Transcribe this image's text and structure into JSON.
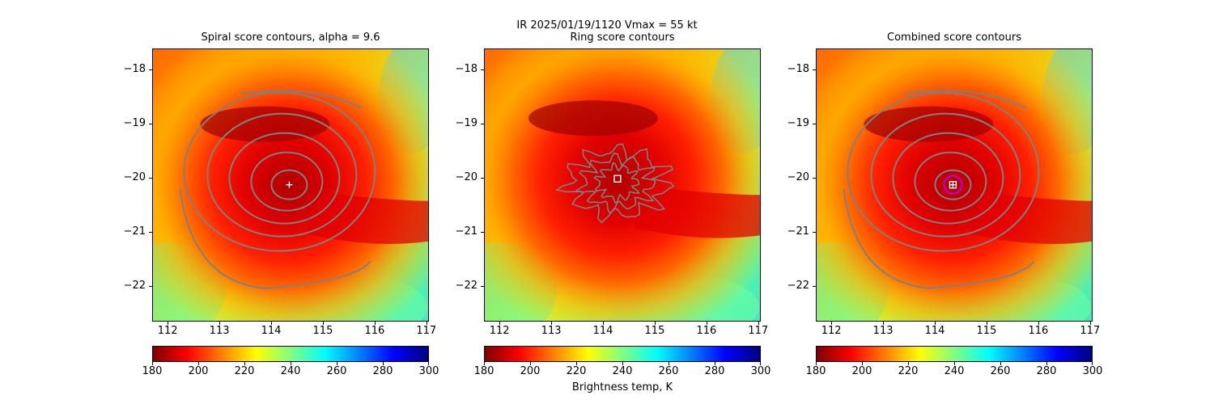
{
  "figure": {
    "suptitle_line1": "IR  2025/01/19/1120    Vmax = 55 kt",
    "colorbar_label": "Brightness temp, K",
    "colormap": [
      "#800000",
      "#ff0000",
      "#ff8000",
      "#ffff00",
      "#80ff80",
      "#00ffff",
      "#0080ff",
      "#0000ff",
      "#000080"
    ],
    "contour_color": "#808080"
  },
  "chart_data": [
    {
      "type": "heatmap",
      "title": "Spiral score contours, alpha =  9.6",
      "xlim": [
        111.7,
        117.05
      ],
      "ylim": [
        -22.65,
        -17.62
      ],
      "xticks": [
        "112",
        "113",
        "114",
        "115",
        "116",
        "117"
      ],
      "yticks": [
        "−18",
        "−19",
        "−20",
        "−21",
        "−22"
      ],
      "colorbar": {
        "min": 180,
        "max": 300,
        "ticks": [
          "180",
          "200",
          "220",
          "240",
          "260",
          "280",
          "300"
        ]
      },
      "center_marker": {
        "x": 114.35,
        "y": -20.13,
        "symbol": "plus",
        "color": "#ffffff"
      }
    },
    {
      "type": "heatmap",
      "title": "Ring score contours",
      "xlim": [
        111.7,
        117.05
      ],
      "ylim": [
        -22.65,
        -17.62
      ],
      "xticks": [
        "112",
        "113",
        "114",
        "115",
        "116",
        "117"
      ],
      "yticks": [
        "−18",
        "−19",
        "−20",
        "−21",
        "−22"
      ],
      "colorbar": {
        "min": 180,
        "max": 300,
        "ticks": [
          "180",
          "200",
          "220",
          "240",
          "260",
          "280",
          "300"
        ]
      },
      "center_marker": {
        "x": 114.28,
        "y": -20.02,
        "symbol": "square",
        "color": "#ffffff"
      }
    },
    {
      "type": "heatmap",
      "title": "Combined score contours",
      "xlim": [
        111.7,
        117.05
      ],
      "ylim": [
        -22.65,
        -17.62
      ],
      "xticks": [
        "112",
        "113",
        "114",
        "115",
        "116",
        "117"
      ],
      "yticks": [
        "−18",
        "−19",
        "−20",
        "−21",
        "−22"
      ],
      "colorbar": {
        "min": 180,
        "max": 300,
        "ticks": [
          "180",
          "200",
          "220",
          "240",
          "260",
          "280",
          "300"
        ]
      },
      "center_marker": {
        "x": 114.35,
        "y": -20.13,
        "symbol": "square-plus",
        "color": "#ffffff",
        "ring_color": "#c000c0"
      }
    }
  ]
}
